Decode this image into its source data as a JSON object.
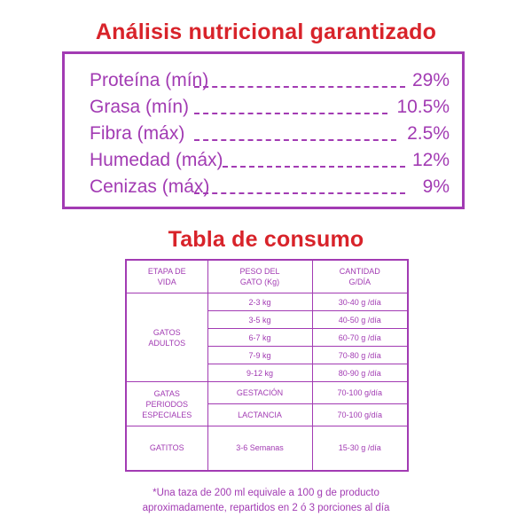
{
  "nutrition": {
    "title": "Análisis nutricional garantizado",
    "rows": [
      {
        "label": "Proteína (mín)",
        "value": "29%"
      },
      {
        "label": "Grasa (mín)",
        "value": "10.5%"
      },
      {
        "label": "Fibra (máx)",
        "value": "2.5%"
      },
      {
        "label": "Humedad (máx)",
        "value": "12%"
      },
      {
        "label": "Cenizas (máx)",
        "value": "9%"
      }
    ]
  },
  "consumo": {
    "title": "Tabla de consumo",
    "headers": {
      "etapa": [
        "ETAPA DE",
        "VIDA"
      ],
      "peso": [
        "PESO DEL",
        "GATO (Kg)"
      ],
      "cantidad": [
        "CANTIDAD",
        "G/DÍA"
      ]
    },
    "groups": {
      "adultos": {
        "label": [
          "GATOS",
          "ADULTOS"
        ],
        "rows": [
          {
            "peso": "2-3 kg",
            "cantidad": "30-40 g /día"
          },
          {
            "peso": "3-5 kg",
            "cantidad": "40-50 g /día"
          },
          {
            "peso": "6-7 kg",
            "cantidad": "60-70 g /día"
          },
          {
            "peso": "7-9 kg",
            "cantidad": "70-80 g /día"
          },
          {
            "peso": "9-12 kg",
            "cantidad": "80-90 g /día"
          }
        ]
      },
      "especiales": {
        "label": [
          "GATAS",
          "PERIODOS",
          "ESPECIALES"
        ],
        "rows": [
          {
            "peso": "GESTACIÓN",
            "cantidad": "70-100 g/día"
          },
          {
            "peso": "LACTANCIA",
            "cantidad": "70-100 g/día"
          }
        ]
      },
      "gatitos": {
        "label": "GATITOS",
        "peso": "3-6 Semanas",
        "cantidad": "15-30 g /día"
      }
    },
    "note": [
      "*Una taza de 200 ml equivale a 100 g de producto",
      "aproximadamente, repartidos en 2 ó 3 porciones al día"
    ]
  },
  "colors": {
    "title": "#d8232a",
    "accent": "#a23bb3"
  }
}
